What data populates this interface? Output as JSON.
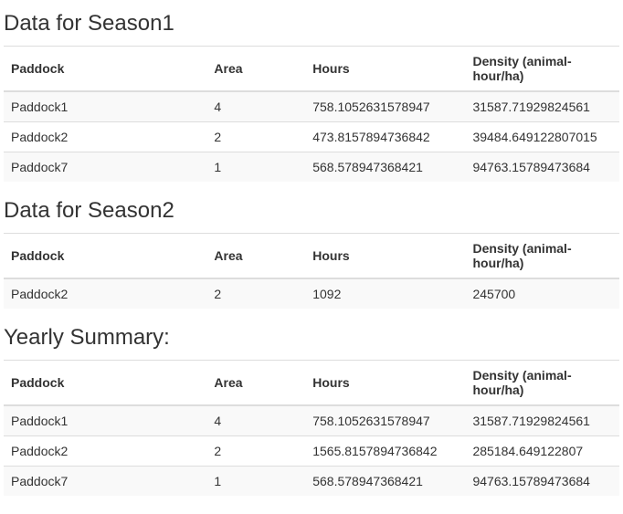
{
  "columns": {
    "paddock": "Paddock",
    "area": "Area",
    "hours": "Hours",
    "density": "Density (animal-hour/ha)"
  },
  "sections": [
    {
      "title": "Data for Season1",
      "rows": [
        {
          "paddock": "Paddock1",
          "area": "4",
          "hours": "758.1052631578947",
          "density": "31587.71929824561"
        },
        {
          "paddock": "Paddock2",
          "area": "2",
          "hours": "473.8157894736842",
          "density": "39484.649122807015"
        },
        {
          "paddock": "Paddock7",
          "area": "1",
          "hours": "568.578947368421",
          "density": "94763.15789473684"
        }
      ]
    },
    {
      "title": "Data for Season2",
      "rows": [
        {
          "paddock": "Paddock2",
          "area": "2",
          "hours": "1092",
          "density": "245700"
        }
      ]
    },
    {
      "title": "Yearly Summary:",
      "rows": [
        {
          "paddock": "Paddock1",
          "area": "4",
          "hours": "758.1052631578947",
          "density": "31587.71929824561"
        },
        {
          "paddock": "Paddock2",
          "area": "2",
          "hours": "1565.8157894736842",
          "density": "285184.649122807"
        },
        {
          "paddock": "Paddock7",
          "area": "1",
          "hours": "568.578947368421",
          "density": "94763.15789473684"
        }
      ]
    }
  ]
}
